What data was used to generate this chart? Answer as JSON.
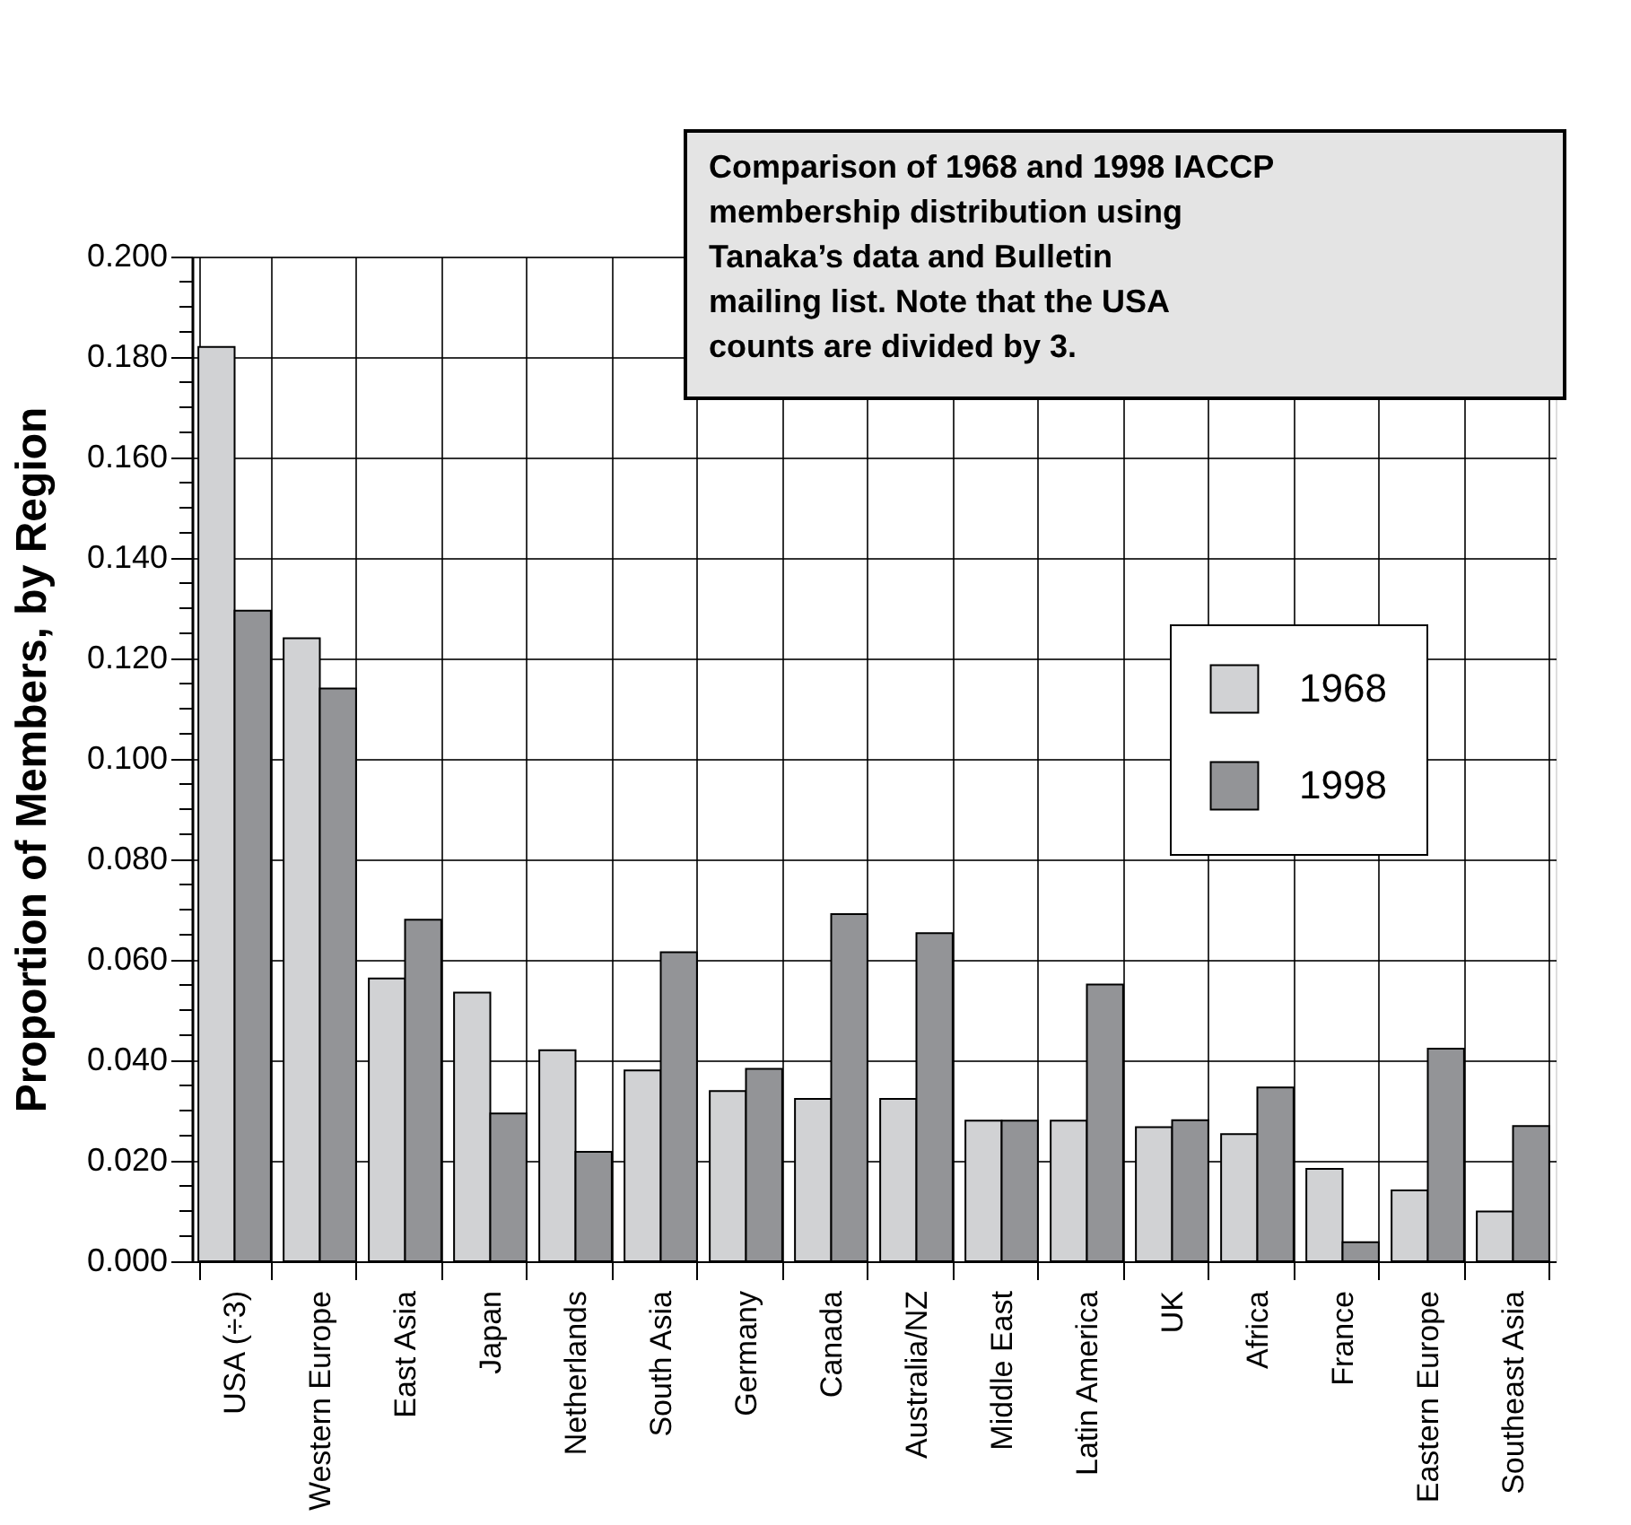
{
  "chart_data": {
    "type": "bar",
    "title": "Comparison of 1968 and 1998 IACCP membership distribution using Tanaka’s data and Bulletin mailing list. Note that the USA counts are divided by 3.",
    "ylabel": "Proportion of Members, by Region",
    "categories": [
      "USA (÷3)",
      "Western Europe",
      "East Asia",
      "Japan",
      "Netherlands",
      "South Asia",
      "Germany",
      "Canada",
      "Australia/NZ",
      "Middle East",
      "Latin America",
      "UK",
      "Africa",
      "France",
      "Eastern Europe",
      "Southeast Asia"
    ],
    "series": [
      {
        "name": "1968",
        "color": "#d1d2d4",
        "values": [
          0.182,
          0.124,
          0.0563,
          0.0535,
          0.042,
          0.038,
          0.0339,
          0.0323,
          0.0323,
          0.028,
          0.028,
          0.0267,
          0.0253,
          0.0184,
          0.0141,
          0.0099
        ]
      },
      {
        "name": "1998",
        "color": "#939497",
        "values": [
          0.1295,
          0.114,
          0.068,
          0.0294,
          0.0218,
          0.0615,
          0.0383,
          0.0691,
          0.0653,
          0.028,
          0.0551,
          0.0281,
          0.0346,
          0.0038,
          0.0423,
          0.0269
        ]
      }
    ],
    "ylim": [
      0,
      0.2
    ],
    "yticks": [
      {
        "value": 0,
        "label": "0.000"
      },
      {
        "value": 0.005,
        "label": null
      },
      {
        "value": 0.01,
        "label": null
      },
      {
        "value": 0.015,
        "label": null
      },
      {
        "value": 0.02,
        "label": "0.020"
      },
      {
        "value": 0.025,
        "label": null
      },
      {
        "value": 0.03,
        "label": null
      },
      {
        "value": 0.035,
        "label": null
      },
      {
        "value": 0.04,
        "label": "0.040"
      },
      {
        "value": 0.045,
        "label": null
      },
      {
        "value": 0.05,
        "label": null
      },
      {
        "value": 0.055,
        "label": null
      },
      {
        "value": 0.06,
        "label": "0.060"
      },
      {
        "value": 0.065,
        "label": null
      },
      {
        "value": 0.07,
        "label": null
      },
      {
        "value": 0.075,
        "label": null
      },
      {
        "value": 0.08,
        "label": "0.080"
      },
      {
        "value": 0.085,
        "label": null
      },
      {
        "value": 0.09,
        "label": null
      },
      {
        "value": 0.095,
        "label": null
      },
      {
        "value": 0.1,
        "label": "0.100"
      },
      {
        "value": 0.105,
        "label": null
      },
      {
        "value": 0.11,
        "label": null
      },
      {
        "value": 0.115,
        "label": null
      },
      {
        "value": 0.12,
        "label": "0.120"
      },
      {
        "value": 0.125,
        "label": null
      },
      {
        "value": 0.13,
        "label": null
      },
      {
        "value": 0.135,
        "label": null
      },
      {
        "value": 0.14,
        "label": "0.140"
      },
      {
        "value": 0.145,
        "label": null
      },
      {
        "value": 0.15,
        "label": null
      },
      {
        "value": 0.155,
        "label": null
      },
      {
        "value": 0.16,
        "label": "0.160"
      },
      {
        "value": 0.165,
        "label": null
      },
      {
        "value": 0.17,
        "label": null
      },
      {
        "value": 0.175,
        "label": null
      },
      {
        "value": 0.18,
        "label": "0.180"
      },
      {
        "value": 0.185,
        "label": null
      },
      {
        "value": 0.19,
        "label": null
      },
      {
        "value": 0.195,
        "label": null
      },
      {
        "value": 0.2,
        "label": "0.200"
      }
    ],
    "grid": true,
    "legend": "right"
  }
}
